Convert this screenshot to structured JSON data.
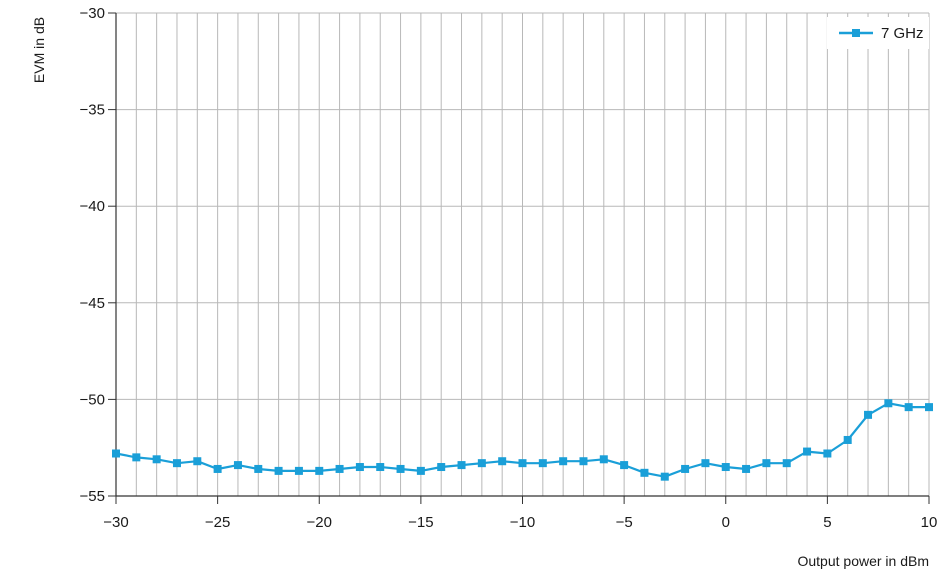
{
  "chart_data": {
    "type": "line",
    "title": "",
    "xlabel": "Output power in dBm",
    "ylabel": "EVM in dB",
    "xlim": [
      -30,
      10
    ],
    "ylim": [
      -55,
      -30
    ],
    "xticks": [
      -30,
      -25,
      -20,
      -15,
      -10,
      -5,
      0,
      5,
      10
    ],
    "xtick_labels": [
      "−30",
      "−25",
      "−20",
      "−15",
      "−10",
      "−5",
      "0",
      "5",
      "10"
    ],
    "yticks": [
      -55,
      -50,
      -45,
      -40,
      -35,
      -30
    ],
    "ytick_labels": [
      "−55",
      "−50",
      "−45",
      "−40",
      "−35",
      "−30"
    ],
    "grid": {
      "vertical": true,
      "vertical_step": 1,
      "horizontal": true
    },
    "legend": "top-right",
    "colors": {
      "series": "#1a9fd8",
      "grid": "#b8b8b8",
      "axis": "#333333"
    },
    "series": [
      {
        "name": "7 GHz",
        "marker": "square",
        "x": [
          -30,
          -29,
          -28,
          -27,
          -26,
          -25,
          -24,
          -23,
          -22,
          -21,
          -20,
          -19,
          -18,
          -17,
          -16,
          -15,
          -14,
          -13,
          -12,
          -11,
          -10,
          -9,
          -8,
          -7,
          -6,
          -5,
          -4,
          -3,
          -2,
          -1,
          0,
          1,
          2,
          3,
          4,
          5,
          6,
          7,
          8,
          9,
          10
        ],
        "y": [
          -52.8,
          -53.0,
          -53.1,
          -53.3,
          -53.2,
          -53.6,
          -53.4,
          -53.6,
          -53.7,
          -53.7,
          -53.7,
          -53.6,
          -53.5,
          -53.5,
          -53.6,
          -53.7,
          -53.5,
          -53.4,
          -53.3,
          -53.2,
          -53.3,
          -53.3,
          -53.2,
          -53.2,
          -53.1,
          -53.4,
          -53.8,
          -54.0,
          -53.6,
          -53.3,
          -53.5,
          -53.6,
          -53.3,
          -53.3,
          -52.7,
          -52.8,
          -52.1,
          -50.8,
          -50.2,
          -50.4,
          -50.4
        ]
      }
    ]
  }
}
